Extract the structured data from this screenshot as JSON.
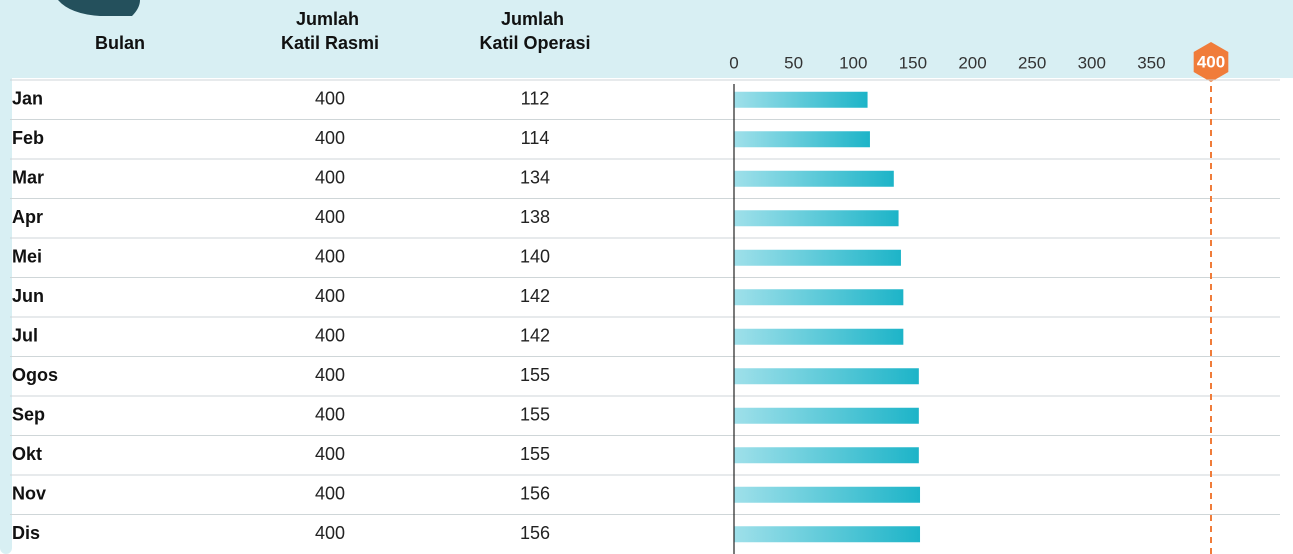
{
  "chart_data": {
    "type": "bar",
    "category_label": "Bulan",
    "categories": [
      "Jan",
      "Feb",
      "Mar",
      "Apr",
      "Mei",
      "Jun",
      "Jul",
      "Ogos",
      "Sep",
      "Okt",
      "Nov",
      "Dis"
    ],
    "series": [
      {
        "name": "Jumlah Katil Rasmi",
        "values": [
          400,
          400,
          400,
          400,
          400,
          400,
          400,
          400,
          400,
          400,
          400,
          400
        ]
      },
      {
        "name": "Jumlah Katil Operasi",
        "color": "#1db4c8",
        "values": [
          112,
          114,
          134,
          138,
          140,
          142,
          142,
          155,
          155,
          155,
          156,
          156
        ]
      }
    ],
    "xlim": [
      0,
      400
    ],
    "xticks": [
      0,
      50,
      100,
      150,
      200,
      250,
      300,
      350,
      400
    ],
    "reference_line": {
      "value": 400,
      "color": "#f07c3a"
    }
  }
}
